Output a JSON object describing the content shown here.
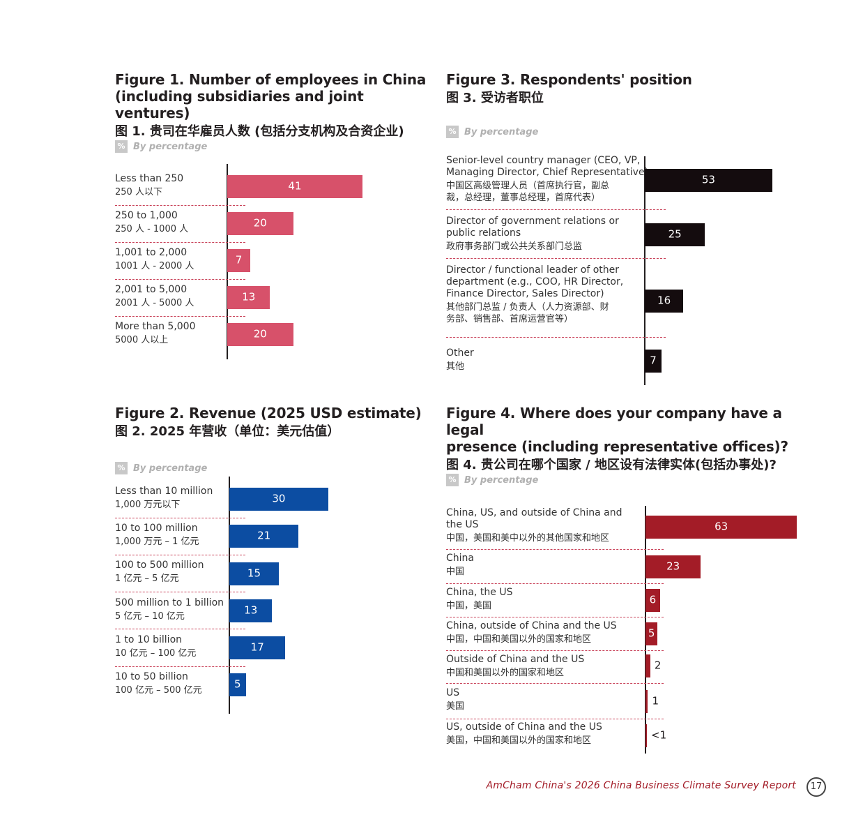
{
  "footer": {
    "text": "AmCham China's 2026 China Business Climate Survey Report",
    "page": "17"
  },
  "by_percentage_label": "By percentage",
  "percent_icon": "%",
  "colors": {
    "fig1": "#d7516a",
    "fig2": "#0c4da2",
    "fig3": "#140c0e",
    "fig4": "#a31c27",
    "divider": "#c9435a"
  },
  "chart_data": [
    {
      "id": "fig1",
      "type": "bar",
      "orientation": "horizontal",
      "title": "Figure 1. Number of employees in China\n(including subsidiaries and joint ventures)",
      "title_zh": "图 1. 贵司在华雇员人数 (包括分支机构及合资企业)",
      "unit": "By percentage",
      "categories": [
        {
          "en": "Less than 250",
          "zh": "250 人以下"
        },
        {
          "en": "250 to 1,000",
          "zh": "250 人 - 1000 人"
        },
        {
          "en": "1,001 to 2,000",
          "zh": "1001 人 - 2000 人"
        },
        {
          "en": "2,001 to 5,000",
          "zh": "2001 人 - 5000 人"
        },
        {
          "en": "More than 5,000",
          "zh": "5000 人以上"
        }
      ],
      "values": [
        41,
        20,
        7,
        13,
        20
      ],
      "value_labels": [
        "41",
        "20",
        "7",
        "13",
        "20"
      ],
      "xlim": [
        0,
        100
      ]
    },
    {
      "id": "fig2",
      "type": "bar",
      "orientation": "horizontal",
      "title": "Figure 2. Revenue (2025 USD estimate)",
      "title_zh": "图 2. 2025 年营收（单位：美元估值）",
      "unit": "By percentage",
      "categories": [
        {
          "en": "Less than 10 million",
          "zh": "1,000 万元以下"
        },
        {
          "en": "10 to 100 million",
          "zh": "1,000 万元 – 1 亿元"
        },
        {
          "en": "100 to 500 million",
          "zh": "1 亿元 – 5 亿元"
        },
        {
          "en": "500 million to 1 billion",
          "zh": "5 亿元 – 10 亿元"
        },
        {
          "en": "1 to 10 billion",
          "zh": "10 亿元 – 100 亿元"
        },
        {
          "en": "10 to 50 billion",
          "zh": "100 亿元 – 500 亿元"
        }
      ],
      "values": [
        30,
        21,
        15,
        13,
        17,
        5
      ],
      "value_labels": [
        "30",
        "21",
        "15",
        "13",
        "17",
        "5"
      ],
      "xlim": [
        0,
        100
      ]
    },
    {
      "id": "fig3",
      "type": "bar",
      "orientation": "horizontal",
      "title": "Figure 3. Respondents' position",
      "title_zh": "图 3. 受访者职位",
      "unit": "By percentage",
      "categories": [
        {
          "en": "Senior-level country manager (CEO, VP,\nManaging Director, Chief Representative)",
          "zh": "中国区高级管理人员（首席执行官，副总\n裁，总经理，董事总经理，首席代表）"
        },
        {
          "en": "Director of government relations or\npublic relations",
          "zh": "政府事务部门或公共关系部门总监"
        },
        {
          "en": "Director / functional leader of other\ndepartment (e.g., COO, HR Director,\nFinance Director, Sales Director)",
          "zh": "其他部门总监 / 负责人（人力资源部、财\n务部、销售部、首席运营官等）"
        },
        {
          "en": "Other",
          "zh": "其他"
        }
      ],
      "values": [
        53,
        25,
        16,
        7
      ],
      "value_labels": [
        "53",
        "25",
        "16",
        "7"
      ],
      "xlim": [
        0,
        100
      ]
    },
    {
      "id": "fig4",
      "type": "bar",
      "orientation": "horizontal",
      "title": "Figure 4. Where does your company have a legal\npresence (including representative offices)?",
      "title_zh": "图 4. 贵公司在哪个国家 / 地区设有法律实体(包括办事处)?",
      "unit": "By percentage",
      "categories": [
        {
          "en": "China, US, and outside of China and\nthe US",
          "zh": "中国，美国和美中以外的其他国家和地区"
        },
        {
          "en": "China",
          "zh": "中国"
        },
        {
          "en": "China, the US",
          "zh": "中国，美国"
        },
        {
          "en": "China, outside of China and the US",
          "zh": "中国，中国和美国以外的国家和地区"
        },
        {
          "en": "Outside of China and the US",
          "zh": "中国和美国以外的国家和地区"
        },
        {
          "en": "US",
          "zh": "美国"
        },
        {
          "en": "US, outside of China and the US",
          "zh": "美国，中国和美国以外的国家和地区"
        }
      ],
      "values": [
        63,
        23,
        6,
        5,
        2,
        1,
        0.5
      ],
      "value_labels": [
        "63",
        "23",
        "6",
        "5",
        "2",
        "1",
        "<1"
      ],
      "xlim": [
        0,
        100
      ]
    }
  ]
}
